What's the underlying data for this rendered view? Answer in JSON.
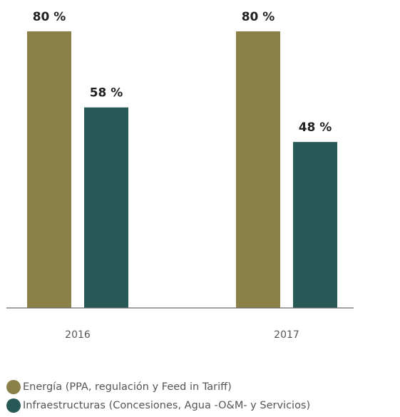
{
  "chart_data": {
    "type": "bar",
    "categories": [
      "2016",
      "2017"
    ],
    "series": [
      {
        "name": "Energía (PPA, regulación y Feed in Tariff)",
        "values": [
          80,
          80
        ],
        "labels": [
          "80 %",
          "80 %"
        ],
        "color": "#8B8048"
      },
      {
        "name": "Infraestructuras (Concesiones, Agua -O&M- y Servicios)",
        "values": [
          58,
          48
        ],
        "labels": [
          "58 %",
          "48 %"
        ],
        "color": "#275957"
      }
    ],
    "ylim": [
      0,
      80
    ],
    "grid": false,
    "legend_position": "bottom-left",
    "axis_color": "#666666"
  }
}
